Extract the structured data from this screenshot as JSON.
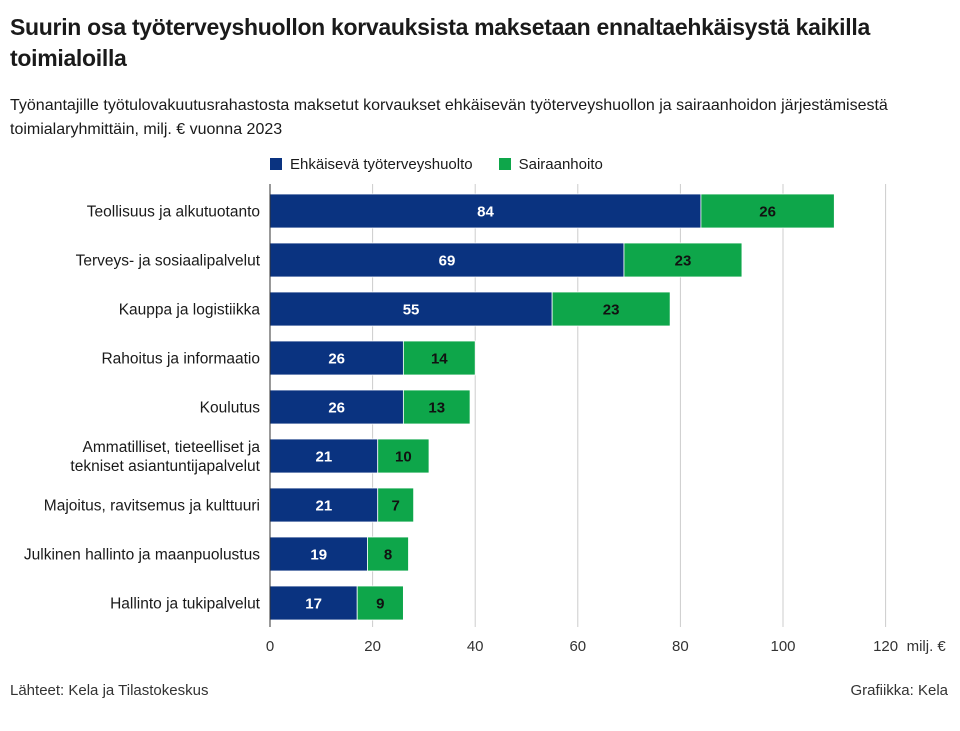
{
  "title": "Suurin osa työterveyshuollon korvauksista maksetaan ennaltaehkäisystä kaikilla toimialoilla",
  "subtitle": "Työnantajille työtulovakuutusrahastosta maksetut korvaukset ehkäisevän työterveyshuollon ja sairaanhoidon järjestämisestä toimialaryhmittäin, milj. € vuonna 2023",
  "source": "Lähteet: Kela ja Tilastokeskus",
  "credit": "Grafiikka: Kela",
  "colors": {
    "series1": "#0a3380",
    "series2": "#0ea64a",
    "grid": "#cccccc",
    "axis": "#333333"
  },
  "chart_data": {
    "type": "bar",
    "orientation": "horizontal",
    "stacked": true,
    "categories": [
      "Teollisuus ja alkutuotanto",
      "Terveys- ja sosiaalipalvelut",
      "Kauppa ja logistiikka",
      "Rahoitus ja informaatio",
      "Koulutus",
      "Ammatilliset, tieteelliset ja tekniset asiantuntijapalvelut",
      "Majoitus, ravitsemus ja kulttuuri",
      "Julkinen hallinto ja maanpuolustus",
      "Hallinto ja tukipalvelut"
    ],
    "category_lines": [
      [
        "Teollisuus ja alkutuotanto"
      ],
      [
        "Terveys- ja sosiaalipalvelut"
      ],
      [
        "Kauppa ja logistiikka"
      ],
      [
        "Rahoitus ja informaatio"
      ],
      [
        "Koulutus"
      ],
      [
        "Ammatilliset, tieteelliset ja",
        "tekniset asiantuntijapalvelut"
      ],
      [
        "Majoitus, ravitsemus ja kulttuuri"
      ],
      [
        "Julkinen hallinto ja maanpuolustus"
      ],
      [
        "Hallinto ja tukipalvelut"
      ]
    ],
    "series": [
      {
        "name": "Ehkäisevä työterveyshuolto",
        "values": [
          84,
          69,
          55,
          26,
          26,
          21,
          21,
          19,
          17
        ]
      },
      {
        "name": "Sairaanhoito",
        "values": [
          26,
          23,
          23,
          14,
          13,
          10,
          7,
          8,
          9
        ]
      }
    ],
    "xlim": [
      0,
      120
    ],
    "xticks": [
      0,
      20,
      40,
      60,
      80,
      100,
      120
    ],
    "xunit": "milj. €",
    "legend_position": "top",
    "grid": true
  }
}
